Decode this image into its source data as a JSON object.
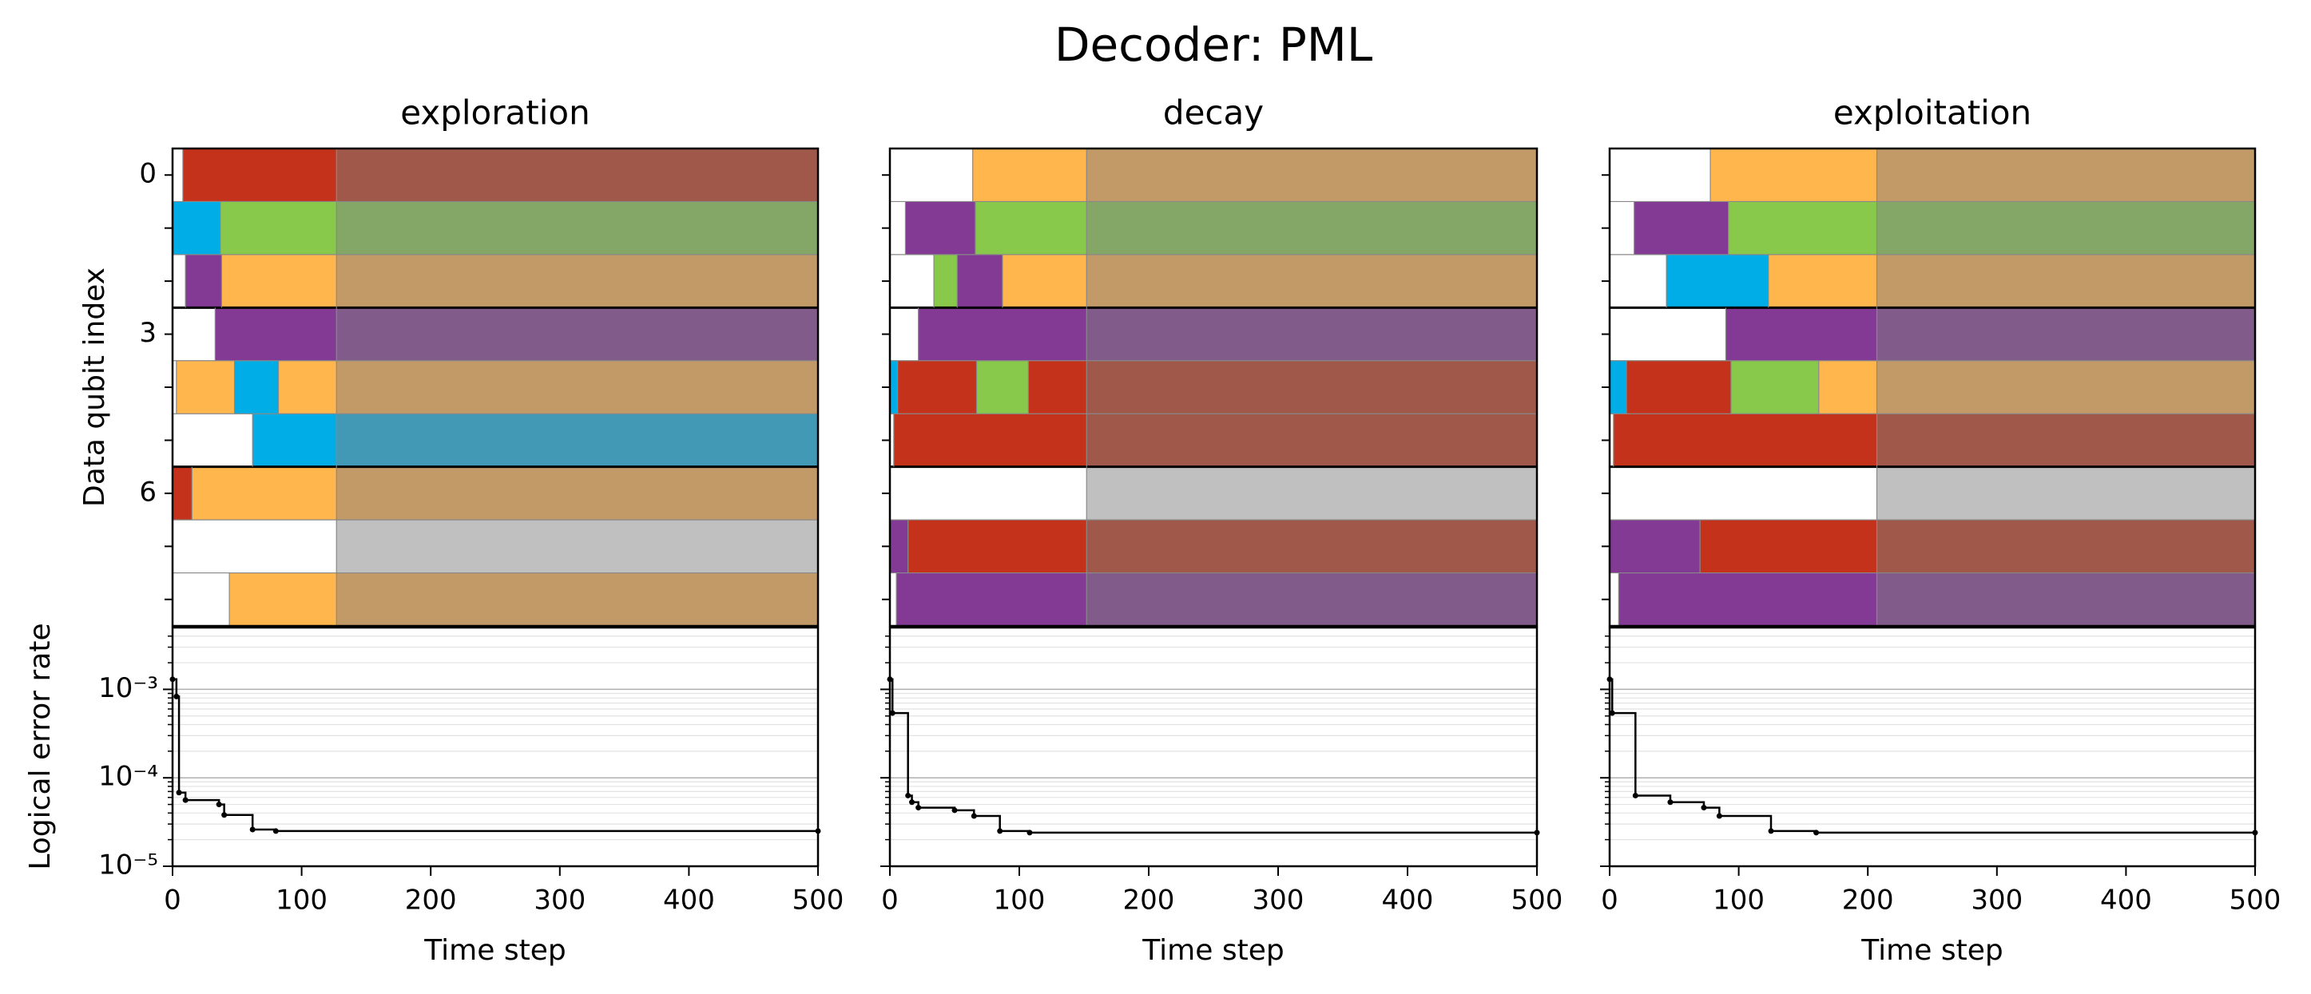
{
  "title": "Decoder: PML",
  "chart_data": [
    {
      "type": "timeline",
      "title": "exploration",
      "ylabel": "Data qubit index",
      "categories": [
        "0",
        null,
        null,
        "3",
        null,
        null,
        "6",
        null,
        null
      ],
      "xlim": [
        0,
        500
      ],
      "rows": [
        {
          "segments": [
            {
              "start": 8,
              "end": 127,
              "color": "#c5321c"
            },
            {
              "start": 127,
              "end": 500,
              "color": "#a0584b"
            }
          ]
        },
        {
          "segments": [
            {
              "start": 0,
              "end": 37,
              "color": "#00ade6"
            },
            {
              "start": 37,
              "end": 127,
              "color": "#88c84a"
            },
            {
              "start": 127,
              "end": 500,
              "color": "#84a767"
            }
          ]
        },
        {
          "segments": [
            {
              "start": 10,
              "end": 38,
              "color": "#833a95"
            },
            {
              "start": 38,
              "end": 127,
              "color": "#ffb64d"
            },
            {
              "start": 127,
              "end": 500,
              "color": "#c19a68"
            }
          ]
        },
        {
          "segments": [
            {
              "start": 33,
              "end": 127,
              "color": "#833a95"
            },
            {
              "start": 127,
              "end": 500,
              "color": "#815b8a"
            }
          ]
        },
        {
          "segments": [
            {
              "start": 3,
              "end": 48,
              "color": "#ffb64d"
            },
            {
              "start": 48,
              "end": 82,
              "color": "#00ade6"
            },
            {
              "start": 82,
              "end": 127,
              "color": "#ffb64d"
            },
            {
              "start": 127,
              "end": 500,
              "color": "#c19a68"
            }
          ]
        },
        {
          "segments": [
            {
              "start": 62,
              "end": 127,
              "color": "#00ade6"
            },
            {
              "start": 127,
              "end": 500,
              "color": "#4199b6"
            }
          ]
        },
        {
          "segments": [
            {
              "start": 0,
              "end": 15,
              "color": "#c5321c"
            },
            {
              "start": 15,
              "end": 127,
              "color": "#ffb64d"
            },
            {
              "start": 127,
              "end": 500,
              "color": "#c19a68"
            }
          ]
        },
        {
          "segments": [
            {
              "start": 127,
              "end": 500,
              "color": "#c0c0c0"
            }
          ]
        },
        {
          "segments": [
            {
              "start": 44,
              "end": 127,
              "color": "#ffb64d"
            },
            {
              "start": 127,
              "end": 500,
              "color": "#c19a68"
            }
          ]
        }
      ]
    },
    {
      "type": "line",
      "yscale": "log",
      "drawstyle": "steps-post",
      "grid": "both",
      "color": "#000000",
      "xlabel": "Time step",
      "ylabel": "Logical error rate",
      "xlim": [
        0,
        500
      ],
      "xticks": [
        0,
        100,
        200,
        300,
        400,
        500
      ],
      "ylim": [
        1e-05,
        0.005
      ],
      "yticks": [
        {
          "value": 1e-05,
          "label": "10⁻⁵"
        },
        {
          "value": 0.0001,
          "label": "10⁻⁴"
        },
        {
          "value": 0.001,
          "label": "10⁻³"
        }
      ],
      "x": [
        0,
        3,
        5,
        10,
        36,
        40,
        62,
        80,
        500
      ],
      "values": [
        0.0013,
        0.00083,
        6.8e-05,
        5.6e-05,
        5e-05,
        3.8e-05,
        2.6e-05,
        2.5e-05,
        2.5e-05
      ]
    },
    {
      "type": "timeline",
      "title": "decay",
      "xlim": [
        0,
        500
      ],
      "rows": [
        {
          "segments": [
            {
              "start": 64,
              "end": 152,
              "color": "#ffb64d"
            },
            {
              "start": 152,
              "end": 500,
              "color": "#c19a68"
            }
          ]
        },
        {
          "segments": [
            {
              "start": 12,
              "end": 66,
              "color": "#833a95"
            },
            {
              "start": 66,
              "end": 152,
              "color": "#88c84a"
            },
            {
              "start": 152,
              "end": 500,
              "color": "#84a767"
            }
          ]
        },
        {
          "segments": [
            {
              "start": 34,
              "end": 52,
              "color": "#88c84a"
            },
            {
              "start": 52,
              "end": 87,
              "color": "#833a95"
            },
            {
              "start": 87,
              "end": 152,
              "color": "#ffb64d"
            },
            {
              "start": 152,
              "end": 500,
              "color": "#c19a68"
            }
          ]
        },
        {
          "segments": [
            {
              "start": 22,
              "end": 152,
              "color": "#833a95"
            },
            {
              "start": 152,
              "end": 500,
              "color": "#815b8a"
            }
          ]
        },
        {
          "segments": [
            {
              "start": 0,
              "end": 6,
              "color": "#00ade6"
            },
            {
              "start": 6,
              "end": 67,
              "color": "#c5321c"
            },
            {
              "start": 67,
              "end": 107,
              "color": "#88c84a"
            },
            {
              "start": 107,
              "end": 152,
              "color": "#c5321c"
            },
            {
              "start": 152,
              "end": 500,
              "color": "#a0584b"
            }
          ]
        },
        {
          "segments": [
            {
              "start": 3,
              "end": 152,
              "color": "#c5321c"
            },
            {
              "start": 152,
              "end": 500,
              "color": "#a0584b"
            }
          ]
        },
        {
          "segments": [
            {
              "start": 152,
              "end": 500,
              "color": "#c0c0c0"
            }
          ]
        },
        {
          "segments": [
            {
              "start": 0,
              "end": 14,
              "color": "#833a95"
            },
            {
              "start": 14,
              "end": 152,
              "color": "#c5321c"
            },
            {
              "start": 152,
              "end": 500,
              "color": "#a0584b"
            }
          ]
        },
        {
          "segments": [
            {
              "start": 5,
              "end": 152,
              "color": "#833a95"
            },
            {
              "start": 152,
              "end": 500,
              "color": "#815b8a"
            }
          ]
        }
      ]
    },
    {
      "type": "line",
      "yscale": "log",
      "drawstyle": "steps-post",
      "grid": "both",
      "color": "#000000",
      "xlabel": "Time step",
      "xlim": [
        0,
        500
      ],
      "xticks": [
        0,
        100,
        200,
        300,
        400,
        500
      ],
      "ylim": [
        1e-05,
        0.005
      ],
      "yticks": [
        1e-05,
        0.0001,
        0.001
      ],
      "show_ytick_labels": false,
      "x": [
        0,
        2,
        14,
        17,
        22,
        50,
        65,
        85,
        108,
        500
      ],
      "values": [
        0.0013,
        0.00054,
        6.3e-05,
        5.3e-05,
        4.6e-05,
        4.3e-05,
        3.7e-05,
        2.5e-05,
        2.4e-05,
        2.4e-05
      ]
    },
    {
      "type": "timeline",
      "title": "exploitation",
      "xlim": [
        0,
        500
      ],
      "rows": [
        {
          "segments": [
            {
              "start": 78,
              "end": 207,
              "color": "#ffb64d"
            },
            {
              "start": 207,
              "end": 500,
              "color": "#c19a68"
            }
          ]
        },
        {
          "segments": [
            {
              "start": 19,
              "end": 92,
              "color": "#833a95"
            },
            {
              "start": 92,
              "end": 207,
              "color": "#88c84a"
            },
            {
              "start": 207,
              "end": 500,
              "color": "#84a767"
            }
          ]
        },
        {
          "segments": [
            {
              "start": 44,
              "end": 123,
              "color": "#00ade6"
            },
            {
              "start": 123,
              "end": 207,
              "color": "#ffb64d"
            },
            {
              "start": 207,
              "end": 500,
              "color": "#c19a68"
            }
          ]
        },
        {
          "segments": [
            {
              "start": 90,
              "end": 207,
              "color": "#833a95"
            },
            {
              "start": 207,
              "end": 500,
              "color": "#815b8a"
            }
          ]
        },
        {
          "segments": [
            {
              "start": 0,
              "end": 13,
              "color": "#00ade6"
            },
            {
              "start": 13,
              "end": 94,
              "color": "#c5321c"
            },
            {
              "start": 94,
              "end": 162,
              "color": "#88c84a"
            },
            {
              "start": 162,
              "end": 207,
              "color": "#ffb64d"
            },
            {
              "start": 207,
              "end": 500,
              "color": "#c19a68"
            }
          ]
        },
        {
          "segments": [
            {
              "start": 3,
              "end": 207,
              "color": "#c5321c"
            },
            {
              "start": 207,
              "end": 500,
              "color": "#a0584b"
            }
          ]
        },
        {
          "segments": [
            {
              "start": 207,
              "end": 500,
              "color": "#c0c0c0"
            }
          ]
        },
        {
          "segments": [
            {
              "start": 0,
              "end": 70,
              "color": "#833a95"
            },
            {
              "start": 70,
              "end": 207,
              "color": "#c5321c"
            },
            {
              "start": 207,
              "end": 500,
              "color": "#a0584b"
            }
          ]
        },
        {
          "segments": [
            {
              "start": 7,
              "end": 207,
              "color": "#833a95"
            },
            {
              "start": 207,
              "end": 500,
              "color": "#815b8a"
            }
          ]
        }
      ]
    },
    {
      "type": "line",
      "yscale": "log",
      "drawstyle": "steps-post",
      "grid": "both",
      "color": "#000000",
      "xlabel": "Time step",
      "xlim": [
        0,
        500
      ],
      "xticks": [
        0,
        100,
        200,
        300,
        400,
        500
      ],
      "ylim": [
        1e-05,
        0.005
      ],
      "yticks": [
        1e-05,
        0.0001,
        0.001
      ],
      "show_ytick_labels": false,
      "x": [
        0,
        2,
        20,
        47,
        73,
        85,
        125,
        160,
        500
      ],
      "values": [
        0.0013,
        0.00054,
        6.3e-05,
        5.3e-05,
        4.6e-05,
        3.7e-05,
        2.5e-05,
        2.4e-05,
        2.4e-05
      ]
    }
  ]
}
